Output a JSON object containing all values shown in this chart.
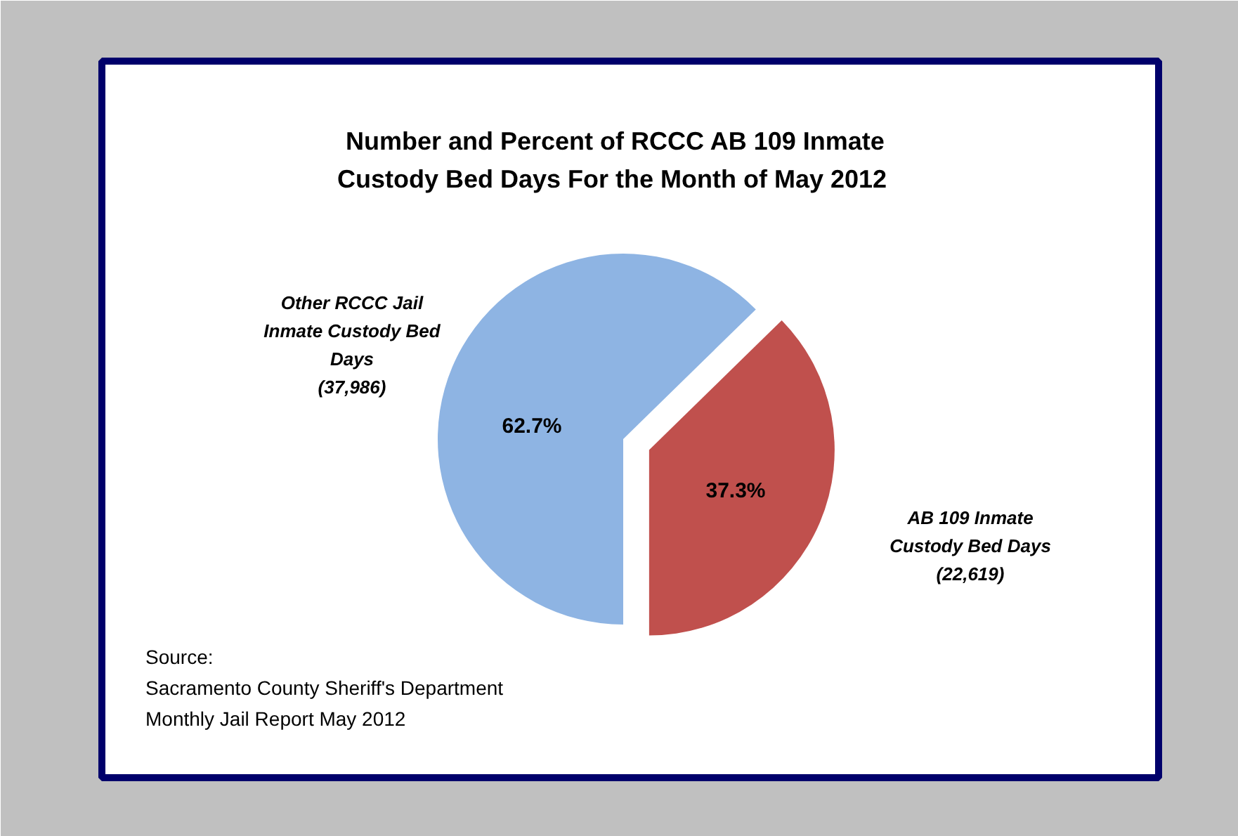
{
  "chart_data": {
    "type": "pie",
    "title": "Number and Percent of  RCCC AB 109 Inmate\nCustody  Bed Days  For the Month of May 2012",
    "categories": [
      "Other RCCC Jail Inmate Custody Bed Days",
      "AB 109 Inmate Custody Bed Days"
    ],
    "values": [
      37986,
      22619
    ],
    "value_labels": [
      "(37,986)",
      "(22,619)"
    ],
    "colors": [
      "#8eb4e3",
      "#c0504d"
    ],
    "annotations": [
      {
        "text": "62.7%",
        "x": "Other RCCC Jail Inmate Custody Bed Days"
      },
      {
        "text": "37.3%",
        "x": "AB 109 Inmate Custody Bed Days"
      },
      "Source:\nSacramento County Sheriff's Department\nMonthly Jail Report May 2012"
    ]
  }
}
